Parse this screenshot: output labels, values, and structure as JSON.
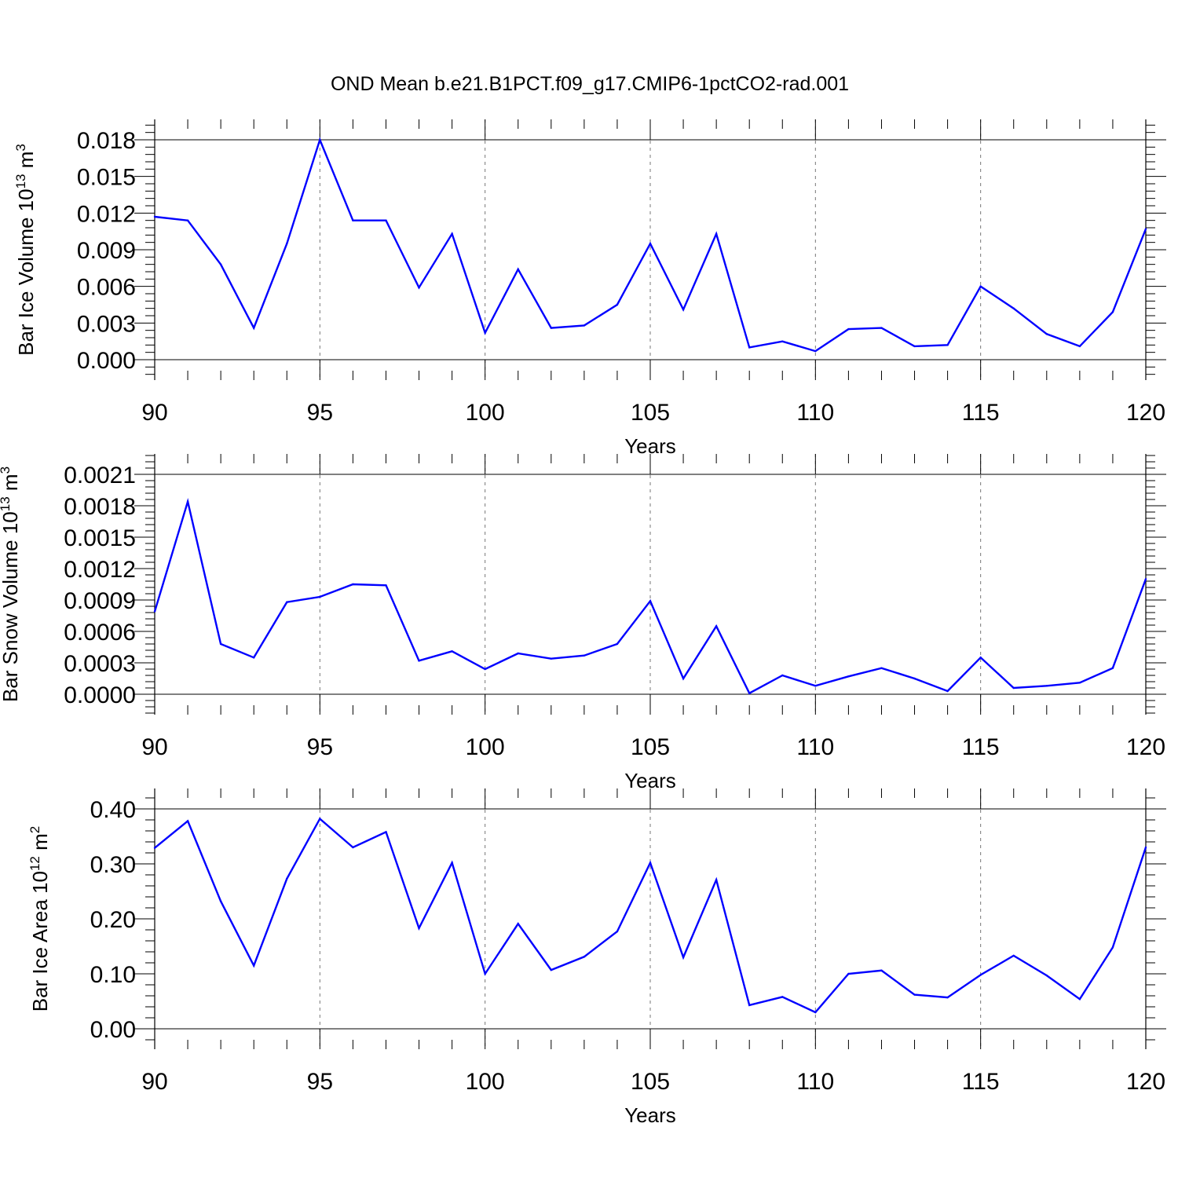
{
  "figure_title": "OND Mean b.e21.B1PCT.f09_g17.CMIP6-1pctCO2-rad.001",
  "line_color": "#0000ff",
  "chart_data": [
    {
      "type": "line",
      "title": "OND Mean b.e21.B1PCT.f09_g17.CMIP6-1pctCO2-rad.001",
      "xlabel": "Years",
      "ylabel": {
        "base": "Bar Ice Volume 10",
        "exp": "13",
        "unit": " m",
        "unit_exp": "3"
      },
      "xlim": [
        90,
        120
      ],
      "ylim": [
        0,
        0.018
      ],
      "x_ticks": [
        90,
        95,
        100,
        105,
        110,
        115,
        120
      ],
      "x_tick_labels": [
        "90",
        "95",
        "100",
        "105",
        "110",
        "115",
        "120"
      ],
      "y_ticks": [
        0,
        0.003,
        0.006,
        0.009,
        0.012,
        0.015,
        0.018
      ],
      "y_tick_labels": [
        "0.000",
        "0.003",
        "0.006",
        "0.009",
        "0.012",
        "0.015",
        "0.018"
      ],
      "grid": "vertical dashed at major x ticks",
      "x": [
        90,
        91,
        92,
        93,
        94,
        95,
        96,
        97,
        98,
        99,
        100,
        101,
        102,
        103,
        104,
        105,
        106,
        107,
        108,
        109,
        110,
        111,
        112,
        113,
        114,
        115,
        116,
        117,
        118,
        119,
        120
      ],
      "series": [
        {
          "values": [
            0.0117,
            0.0114,
            0.0078,
            0.0026,
            0.0095,
            0.018,
            0.0114,
            0.0114,
            0.0059,
            0.0103,
            0.0022,
            0.0074,
            0.0026,
            0.0028,
            0.0045,
            0.0095,
            0.0041,
            0.0103,
            0.001,
            0.0015,
            0.0007,
            0.0025,
            0.0026,
            0.0011,
            0.0012,
            0.006,
            0.0042,
            0.0021,
            0.0011,
            0.0039,
            0.0107
          ]
        }
      ]
    },
    {
      "type": "line",
      "xlabel": "Years",
      "ylabel": {
        "base": "Bar Snow Volume 10",
        "exp": "13",
        "unit": " m",
        "unit_exp": "3"
      },
      "xlim": [
        90,
        120
      ],
      "ylim": [
        0,
        0.0021
      ],
      "x_ticks": [
        90,
        95,
        100,
        105,
        110,
        115,
        120
      ],
      "x_tick_labels": [
        "90",
        "95",
        "100",
        "105",
        "110",
        "115",
        "120"
      ],
      "y_ticks": [
        0,
        0.0003,
        0.0006,
        0.0009,
        0.0012,
        0.0015,
        0.0018,
        0.0021
      ],
      "y_tick_labels": [
        "0.0000",
        "0.0003",
        "0.0006",
        "0.0009",
        "0.0012",
        "0.0015",
        "0.0018",
        "0.0021"
      ],
      "grid": "vertical dashed at major x ticks",
      "x": [
        90,
        91,
        92,
        93,
        94,
        95,
        96,
        97,
        98,
        99,
        100,
        101,
        102,
        103,
        104,
        105,
        106,
        107,
        108,
        109,
        110,
        111,
        112,
        113,
        114,
        115,
        116,
        117,
        118,
        119,
        120
      ],
      "series": [
        {
          "values": [
            0.00079,
            0.00184,
            0.00048,
            0.00035,
            0.00088,
            0.00093,
            0.00105,
            0.00104,
            0.00032,
            0.00041,
            0.00024,
            0.00039,
            0.00034,
            0.00037,
            0.00048,
            0.00089,
            0.00015,
            0.00065,
            1e-05,
            0.00018,
            8e-05,
            0.00017,
            0.00025,
            0.00015,
            3e-05,
            0.00035,
            6e-05,
            8e-05,
            0.00011,
            0.00025,
            0.0011
          ]
        }
      ]
    },
    {
      "type": "line",
      "xlabel": "Years",
      "ylabel": {
        "base": "Bar Ice Area 10",
        "exp": "12",
        "unit": " m",
        "unit_exp": "2"
      },
      "xlim": [
        90,
        120
      ],
      "ylim": [
        0,
        0.4
      ],
      "x_ticks": [
        90,
        95,
        100,
        105,
        110,
        115,
        120
      ],
      "x_tick_labels": [
        "90",
        "95",
        "100",
        "105",
        "110",
        "115",
        "120"
      ],
      "y_ticks": [
        0,
        0.1,
        0.2,
        0.3,
        0.4
      ],
      "y_tick_labels": [
        "0.00",
        "0.10",
        "0.20",
        "0.30",
        "0.40"
      ],
      "grid": "vertical dashed at major x ticks",
      "x": [
        90,
        91,
        92,
        93,
        94,
        95,
        96,
        97,
        98,
        99,
        100,
        101,
        102,
        103,
        104,
        105,
        106,
        107,
        108,
        109,
        110,
        111,
        112,
        113,
        114,
        115,
        116,
        117,
        118,
        119,
        120
      ],
      "series": [
        {
          "values": [
            0.329,
            0.378,
            0.232,
            0.115,
            0.273,
            0.382,
            0.33,
            0.358,
            0.183,
            0.302,
            0.1,
            0.191,
            0.107,
            0.131,
            0.177,
            0.302,
            0.13,
            0.271,
            0.043,
            0.058,
            0.03,
            0.1,
            0.106,
            0.062,
            0.057,
            0.098,
            0.133,
            0.097,
            0.054,
            0.148,
            0.33
          ]
        }
      ]
    }
  ]
}
